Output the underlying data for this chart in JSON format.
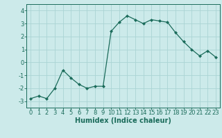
{
  "x": [
    0,
    1,
    2,
    3,
    4,
    5,
    6,
    7,
    8,
    9,
    10,
    11,
    12,
    13,
    14,
    15,
    16,
    17,
    18,
    19,
    20,
    21,
    22,
    23
  ],
  "y": [
    -2.8,
    -2.6,
    -2.8,
    -2.0,
    -0.6,
    -1.2,
    -1.7,
    -2.0,
    -1.85,
    -1.85,
    2.4,
    3.1,
    3.6,
    3.3,
    3.0,
    3.3,
    3.2,
    3.1,
    2.3,
    1.6,
    1.0,
    0.5,
    0.9,
    0.4
  ],
  "line_color": "#1a6b5a",
  "marker_color": "#1a6b5a",
  "bg_color": "#cceaea",
  "grid_color": "#aad4d4",
  "xlabel": "Humidex (Indice chaleur)",
  "ylim": [
    -3.5,
    4.5
  ],
  "xlim": [
    -0.5,
    23.5
  ],
  "yticks": [
    -3,
    -2,
    -1,
    0,
    1,
    2,
    3,
    4
  ],
  "xticks": [
    0,
    1,
    2,
    3,
    4,
    5,
    6,
    7,
    8,
    9,
    10,
    11,
    12,
    13,
    14,
    15,
    16,
    17,
    18,
    19,
    20,
    21,
    22,
    23
  ],
  "tick_color": "#1a6b5a",
  "font_size": 6.0,
  "label_font_size": 7.0,
  "marker_size": 2.0,
  "line_width": 0.9
}
